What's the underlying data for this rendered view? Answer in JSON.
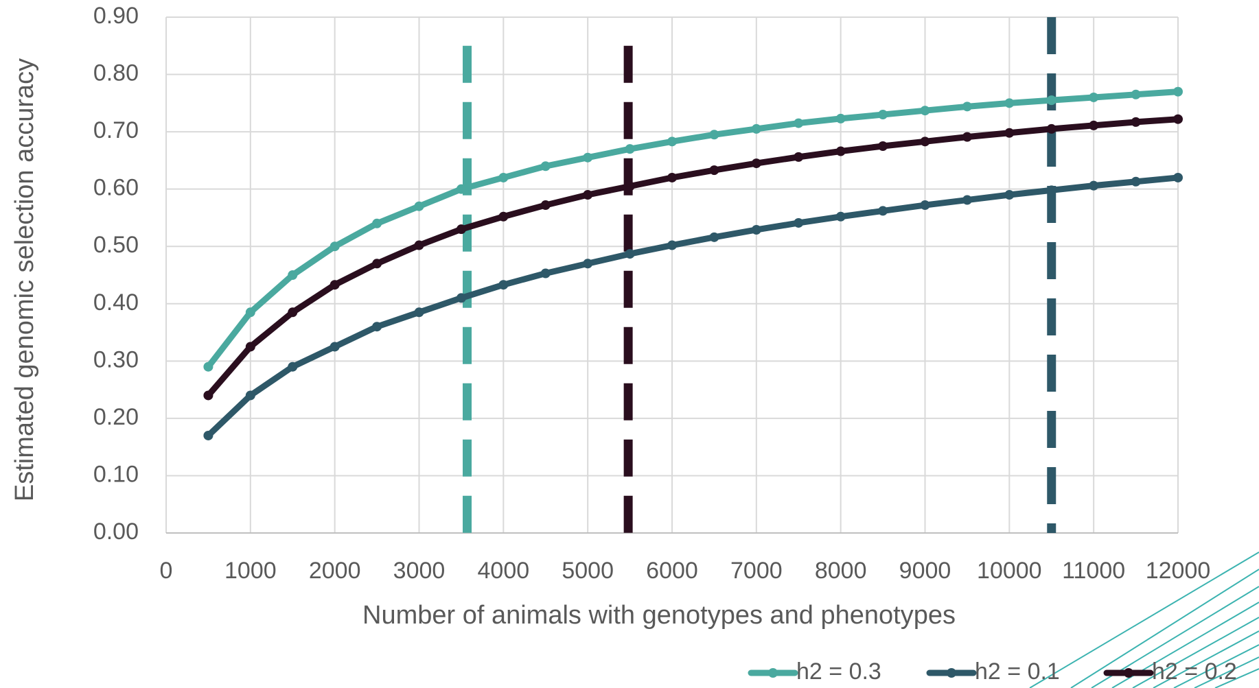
{
  "chart_data": {
    "type": "line",
    "x_label": "Number of animals with genotypes and phenotypes",
    "y_label": "Estimated genomic selection accuracy",
    "x": [
      500,
      1000,
      1500,
      2000,
      2500,
      3000,
      3500,
      4000,
      4500,
      5000,
      5500,
      6000,
      6500,
      7000,
      7500,
      8000,
      8500,
      9000,
      9500,
      10000,
      10500,
      11000,
      11500,
      12000
    ],
    "series": [
      {
        "name": "h2 = 0.3",
        "color": "#4aa99f",
        "values": [
          0.29,
          0.385,
          0.45,
          0.5,
          0.54,
          0.57,
          0.6,
          0.62,
          0.64,
          0.655,
          0.67,
          0.683,
          0.695,
          0.705,
          0.715,
          0.723,
          0.73,
          0.737,
          0.744,
          0.75,
          0.755,
          0.76,
          0.765,
          0.77
        ]
      },
      {
        "name": "h2 = 0.1",
        "color": "#2e5868",
        "values": [
          0.17,
          0.24,
          0.29,
          0.325,
          0.36,
          0.385,
          0.41,
          0.433,
          0.453,
          0.47,
          0.487,
          0.502,
          0.516,
          0.529,
          0.541,
          0.552,
          0.562,
          0.572,
          0.581,
          0.59,
          0.598,
          0.606,
          0.613,
          0.62
        ]
      },
      {
        "name": "h2 = 0.2",
        "color": "#2a0e1e",
        "values": [
          0.24,
          0.325,
          0.385,
          0.433,
          0.47,
          0.502,
          0.53,
          0.552,
          0.572,
          0.59,
          0.605,
          0.62,
          0.633,
          0.645,
          0.656,
          0.666,
          0.675,
          0.683,
          0.691,
          0.698,
          0.705,
          0.711,
          0.717,
          0.722
        ]
      }
    ],
    "reference_lines": [
      {
        "x": 3570,
        "y_range": [
          0,
          0.85
        ],
        "color": "#4aa99f"
      },
      {
        "x": 5480,
        "y_range": [
          0,
          0.85
        ],
        "color": "#2a0e1e"
      },
      {
        "x": 10500,
        "y_range": [
          0,
          0.9
        ],
        "color": "#2e5868"
      }
    ],
    "xlim": [
      0,
      12000
    ],
    "xticks": [
      0,
      1000,
      2000,
      3000,
      4000,
      5000,
      6000,
      7000,
      8000,
      9000,
      10000,
      11000,
      12000
    ],
    "ylim": [
      0,
      0.9
    ],
    "yticks": [
      {
        "value": 0,
        "label": "0.00"
      },
      {
        "value": 0.1,
        "label": "0.10"
      },
      {
        "value": 0.2,
        "label": "0.20"
      },
      {
        "value": 0.3,
        "label": "0.30"
      },
      {
        "value": 0.4,
        "label": "0.40"
      },
      {
        "value": 0.5,
        "label": "0.50"
      },
      {
        "value": 0.6,
        "label": "0.60"
      },
      {
        "value": 0.7,
        "label": "0.70"
      },
      {
        "value": 0.8,
        "label": "0.80"
      },
      {
        "value": 0.9,
        "label": "0.90"
      }
    ],
    "grid": true,
    "legend": "lower right"
  }
}
